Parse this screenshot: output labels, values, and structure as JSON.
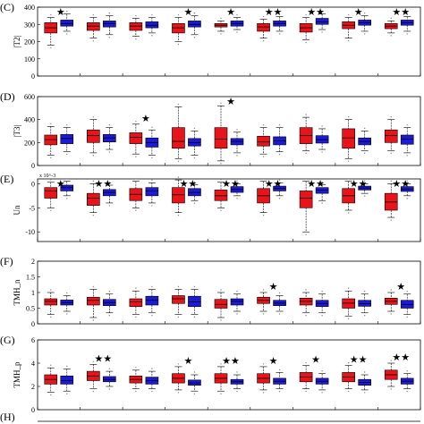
{
  "figure": {
    "colors": {
      "series_a": "#e8141a",
      "series_b": "#1a1ad8",
      "axis": "#000000",
      "outlier": "#888888"
    }
  },
  "chart_data": [
    {
      "panel": "(C)",
      "type": "box",
      "ylabel": "|T2|",
      "ylim": [
        0,
        400
      ],
      "yticks": [
        0,
        100,
        200,
        300,
        400
      ],
      "sci_label": "",
      "groups": [
        {
          "a": [
            180,
            250,
            280,
            310,
            340
          ],
          "b": [
            260,
            290,
            305,
            325,
            360
          ],
          "stars": 1
        },
        {
          "a": [
            220,
            265,
            290,
            310,
            340
          ],
          "b": [
            240,
            285,
            305,
            320,
            350
          ],
          "stars": 0
        },
        {
          "a": [
            230,
            265,
            290,
            310,
            335
          ],
          "b": [
            250,
            280,
            295,
            315,
            340
          ],
          "stars": 0
        },
        {
          "a": [
            200,
            250,
            280,
            305,
            340
          ],
          "b": [
            240,
            285,
            300,
            320,
            350
          ],
          "stars": 1
        },
        {
          "a": [
            260,
            285,
            295,
            305,
            320
          ],
          "b": [
            270,
            290,
            305,
            320,
            340
          ],
          "stars": 1
        },
        {
          "a": [
            220,
            260,
            285,
            305,
            330
          ],
          "b": [
            260,
            290,
            305,
            320,
            345
          ],
          "stars": 2
        },
        {
          "a": [
            210,
            255,
            280,
            305,
            340
          ],
          "b": [
            270,
            300,
            315,
            335,
            360
          ],
          "stars": 2
        },
        {
          "a": [
            220,
            275,
            295,
            315,
            340
          ],
          "b": [
            260,
            295,
            310,
            325,
            350
          ],
          "stars": 1
        },
        {
          "a": [
            250,
            275,
            290,
            305,
            320
          ],
          "b": [
            260,
            295,
            310,
            325,
            345
          ],
          "stars": 2
        }
      ]
    },
    {
      "panel": "(D)",
      "type": "box",
      "ylabel": "|T3|",
      "ylim": [
        0,
        600
      ],
      "yticks": [
        0,
        200,
        400,
        600
      ],
      "sci_label": "",
      "groups": [
        {
          "a": [
            90,
            180,
            225,
            265,
            340
          ],
          "b": [
            120,
            190,
            235,
            270,
            330
          ],
          "stars": 0
        },
        {
          "a": [
            110,
            200,
            260,
            310,
            400
          ],
          "b": [
            140,
            205,
            240,
            270,
            330
          ],
          "stars": 0
        },
        {
          "a": [
            100,
            190,
            245,
            285,
            360
          ],
          "b": [
            90,
            160,
            200,
            240,
            310
          ],
          "stars": 1
        },
        {
          "a": [
            60,
            150,
            210,
            330,
            510
          ],
          "b": [
            90,
            170,
            200,
            235,
            300
          ],
          "stars": 0
        },
        {
          "a": [
            40,
            150,
            230,
            330,
            520
          ],
          "b": [
            110,
            180,
            210,
            235,
            290
          ],
          "stars": 1
        },
        {
          "a": [
            100,
            170,
            205,
            255,
            330
          ],
          "b": [
            120,
            180,
            215,
            250,
            330
          ],
          "stars": 0
        },
        {
          "a": [
            130,
            190,
            260,
            330,
            420
          ],
          "b": [
            140,
            195,
            225,
            260,
            320
          ],
          "stars": 0
        },
        {
          "a": [
            60,
            150,
            240,
            320,
            400
          ],
          "b": [
            130,
            180,
            210,
            240,
            300
          ],
          "stars": 0
        },
        {
          "a": [
            130,
            200,
            260,
            310,
            400
          ],
          "b": [
            110,
            185,
            230,
            265,
            330
          ],
          "stars": 0
        }
      ]
    },
    {
      "panel": "(E)",
      "type": "box",
      "ylabel": "Un",
      "ylim": [
        -12,
        1
      ],
      "yticks": [
        0,
        -5,
        -10
      ],
      "sci_label": "x 10^-3",
      "groups": [
        {
          "a": [
            -5,
            -3,
            -1.5,
            -0.8,
            0.3
          ],
          "b": [
            -2.5,
            -1.5,
            -0.8,
            -0.3,
            0.5
          ],
          "stars": 1
        },
        {
          "a": [
            -6,
            -4.5,
            -3,
            -2,
            0
          ],
          "b": [
            -4,
            -2.5,
            -1.8,
            -1.2,
            -0.3
          ],
          "stars": 2
        },
        {
          "a": [
            -5,
            -3.5,
            -2.2,
            -1,
            0.5
          ],
          "b": [
            -4,
            -2.5,
            -1.5,
            -0.8,
            0.2
          ],
          "stars": 0
        },
        {
          "a": [
            -6,
            -4,
            -2.3,
            -0.8,
            0.8
          ],
          "b": [
            -3.5,
            -2.5,
            -1.8,
            -1,
            -0.2
          ],
          "stars": 2
        },
        {
          "a": [
            -5,
            -3.5,
            -2.5,
            -1.3,
            0.3
          ],
          "b": [
            -2.5,
            -1.8,
            -1.2,
            -0.6,
            0
          ],
          "stars": 2
        },
        {
          "a": [
            -6,
            -4,
            -2.5,
            -1,
            0.5
          ],
          "b": [
            -2.5,
            -1.5,
            -1,
            -0.5,
            0.2
          ],
          "stars": 2
        },
        {
          "a": [
            -10,
            -5,
            -3,
            -1.5,
            0.5
          ],
          "b": [
            -3.5,
            -2,
            -1.3,
            -0.8,
            -0.2
          ],
          "stars": 2
        },
        {
          "a": [
            -5.5,
            -4,
            -2.5,
            -1,
            0.5
          ],
          "b": [
            -2,
            -1.3,
            -0.9,
            -0.5,
            0
          ],
          "stars": 2
        },
        {
          "a": [
            -7,
            -5.5,
            -3.8,
            -2,
            0
          ],
          "b": [
            -2.5,
            -1.6,
            -1.1,
            -0.6,
            0
          ],
          "stars": 2
        }
      ]
    },
    {
      "panel": "(F)",
      "type": "box",
      "ylabel": "TMH_n",
      "ylim": [
        0,
        2
      ],
      "yticks": [
        0,
        0.5,
        1,
        1.5,
        2
      ],
      "sci_label": "",
      "groups": [
        {
          "a": [
            0.3,
            0.6,
            0.72,
            0.8,
            1.0
          ],
          "b": [
            0.4,
            0.6,
            0.68,
            0.76,
            0.9
          ],
          "stars": 0
        },
        {
          "a": [
            0.2,
            0.6,
            0.75,
            0.85,
            1.1
          ],
          "b": [
            0.35,
            0.58,
            0.68,
            0.78,
            0.95
          ],
          "stars": 0
        },
        {
          "a": [
            0.3,
            0.55,
            0.7,
            0.8,
            1.05
          ],
          "b": [
            0.35,
            0.6,
            0.75,
            0.88,
            1.1
          ],
          "stars": 0
        },
        {
          "a": [
            0.3,
            0.65,
            0.8,
            0.9,
            1.1
          ],
          "b": [
            0.3,
            0.55,
            0.7,
            0.88,
            1.1
          ],
          "stars": 0
        },
        {
          "a": [
            0.2,
            0.5,
            0.62,
            0.78,
            1.0
          ],
          "b": [
            0.4,
            0.6,
            0.72,
            0.8,
            0.95
          ],
          "stars": 0
        },
        {
          "a": [
            0.4,
            0.65,
            0.75,
            0.85,
            1.0
          ],
          "b": [
            0.4,
            0.58,
            0.66,
            0.75,
            0.9
          ],
          "stars": 1
        },
        {
          "a": [
            0.35,
            0.6,
            0.72,
            0.82,
            1.0
          ],
          "b": [
            0.35,
            0.55,
            0.65,
            0.75,
            0.95
          ],
          "stars": 0
        },
        {
          "a": [
            0.25,
            0.5,
            0.66,
            0.8,
            1.05
          ],
          "b": [
            0.35,
            0.56,
            0.64,
            0.75,
            0.95
          ],
          "stars": 0
        },
        {
          "a": [
            0.4,
            0.62,
            0.72,
            0.82,
            1.0
          ],
          "b": [
            0.3,
            0.5,
            0.62,
            0.75,
            0.95
          ],
          "stars": 1
        }
      ]
    },
    {
      "panel": "(G)",
      "type": "box",
      "ylabel": "TMH_p",
      "ylim": [
        0,
        6
      ],
      "yticks": [
        0,
        2,
        4,
        6
      ],
      "sci_label": "",
      "groups": [
        {
          "a": [
            1.5,
            2.2,
            2.6,
            3.0,
            3.6
          ],
          "b": [
            1.6,
            2.2,
            2.5,
            2.9,
            3.5
          ],
          "stars": 0
        },
        {
          "a": [
            1.8,
            2.5,
            2.9,
            3.3,
            3.9
          ],
          "b": [
            2.0,
            2.4,
            2.6,
            2.85,
            3.3
          ],
          "stars": 2
        },
        {
          "a": [
            1.8,
            2.3,
            2.6,
            2.9,
            3.4
          ],
          "b": [
            1.8,
            2.2,
            2.5,
            2.8,
            3.3
          ],
          "stars": 0
        },
        {
          "a": [
            1.7,
            2.3,
            2.7,
            3.1,
            3.7
          ],
          "b": [
            1.6,
            2.1,
            2.3,
            2.55,
            3.0
          ],
          "stars": 1
        },
        {
          "a": [
            1.6,
            2.3,
            2.7,
            3.1,
            3.7
          ],
          "b": [
            1.8,
            2.2,
            2.4,
            2.6,
            3.0
          ],
          "stars": 2
        },
        {
          "a": [
            1.7,
            2.3,
            2.7,
            3.1,
            3.7
          ],
          "b": [
            1.8,
            2.2,
            2.45,
            2.7,
            3.2
          ],
          "stars": 1
        },
        {
          "a": [
            1.8,
            2.4,
            2.8,
            3.2,
            3.8
          ],
          "b": [
            1.7,
            2.2,
            2.45,
            2.7,
            3.1
          ],
          "stars": 1
        },
        {
          "a": [
            1.8,
            2.4,
            2.8,
            3.2,
            3.8
          ],
          "b": [
            1.7,
            2.1,
            2.35,
            2.6,
            3.0
          ],
          "stars": 2
        },
        {
          "a": [
            2.0,
            2.6,
            3.0,
            3.4,
            4.0
          ],
          "b": [
            1.8,
            2.2,
            2.45,
            2.7,
            3.1
          ],
          "stars": 2
        }
      ]
    }
  ],
  "next_panel": {
    "label": "(H)"
  }
}
